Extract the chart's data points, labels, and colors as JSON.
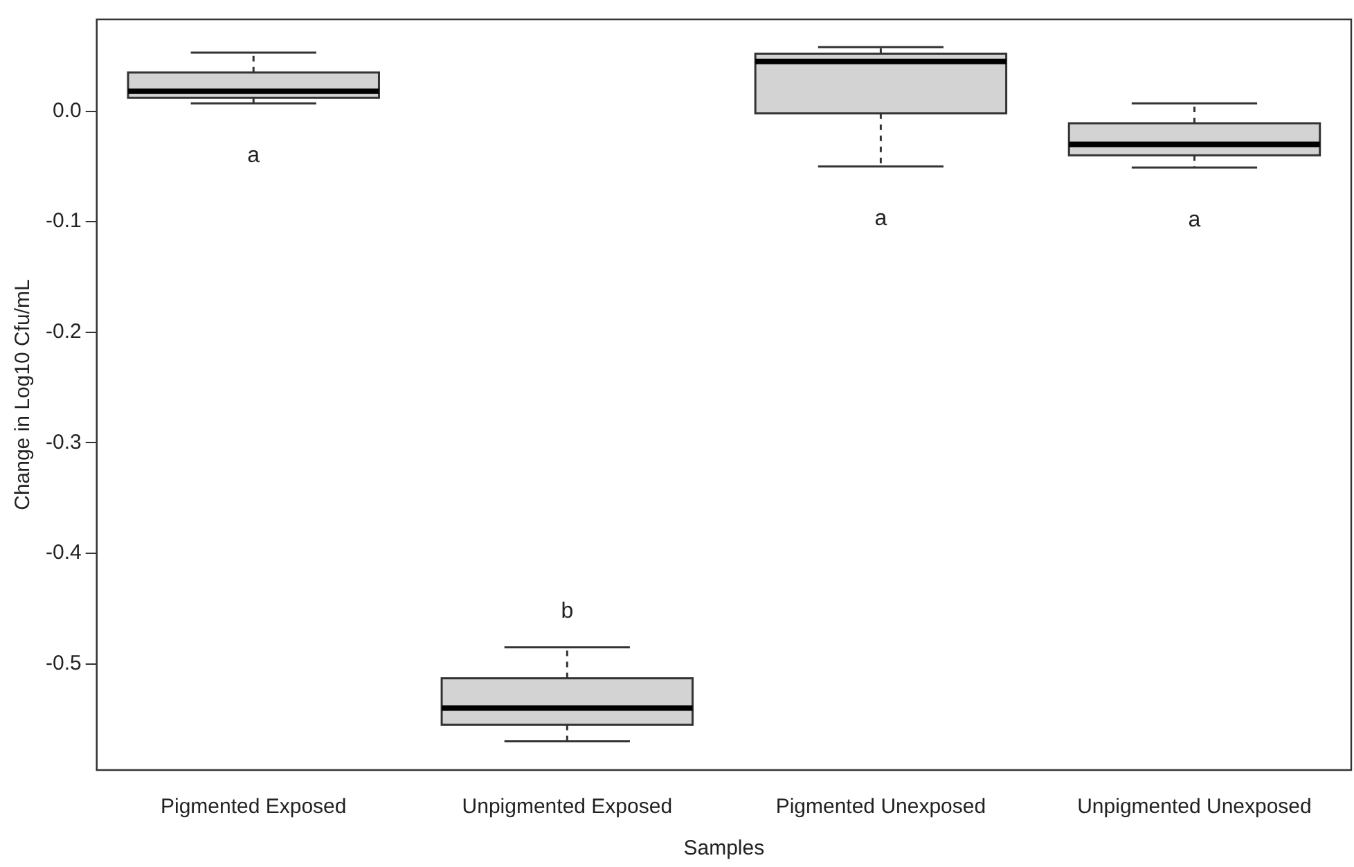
{
  "chart_data": {
    "type": "box",
    "xlabel": "Samples",
    "ylabel": "Change in Log10 Cfu/mL",
    "categories": [
      "Pigmented Exposed",
      "Unpigmented Exposed",
      "Pigmented Unexposed",
      "Unpigmented Unexposed"
    ],
    "color": "#d3d3d3",
    "boxes": [
      {
        "low": 0.007,
        "q1": 0.012,
        "median": 0.018,
        "q3": 0.035,
        "high": 0.053
      },
      {
        "low": -0.57,
        "q1": -0.555,
        "median": -0.54,
        "q3": -0.513,
        "high": -0.485
      },
      {
        "low": -0.05,
        "q1": -0.002,
        "median": 0.045,
        "q3": 0.052,
        "high": 0.058
      },
      {
        "low": -0.051,
        "q1": -0.04,
        "median": -0.03,
        "q3": -0.011,
        "high": 0.007
      }
    ],
    "ylim": [
      -0.596,
      0.083
    ],
    "yticks": [
      {
        "value": 0,
        "label": "0.0"
      },
      -0.1,
      -0.2,
      -0.3,
      -0.4,
      -0.5
    ],
    "grid": false,
    "legend": false,
    "annotations": [
      "a",
      "b",
      "a",
      "a"
    ]
  }
}
